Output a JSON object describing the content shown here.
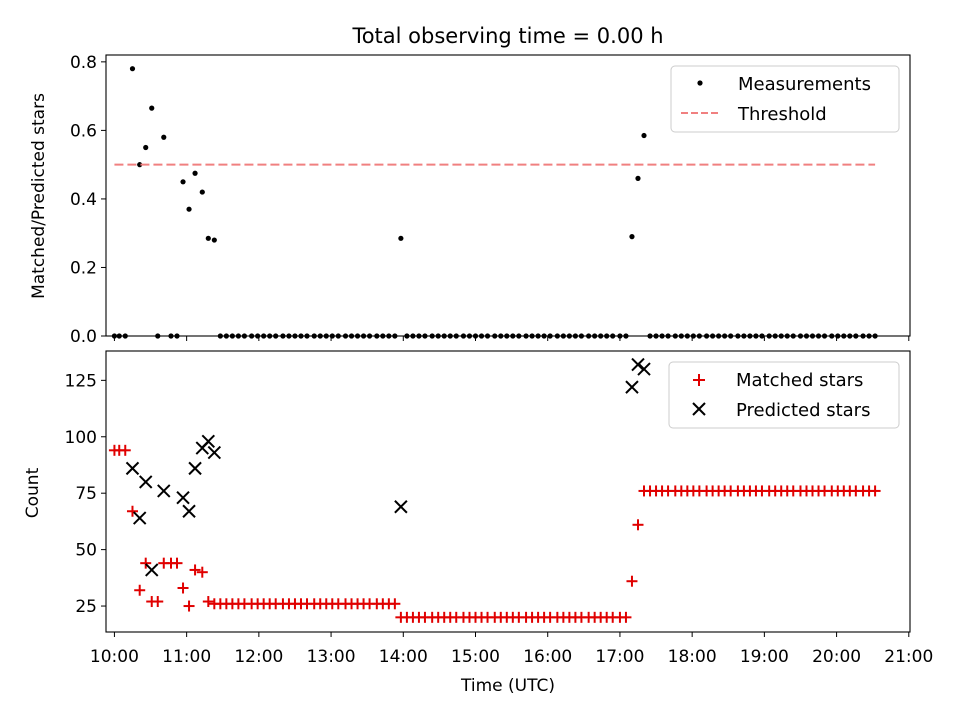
{
  "figure": {
    "title": "Total observing time = 0.00 h",
    "xlabel": "Time (UTC)",
    "xticks": [
      "10:00",
      "11:00",
      "12:00",
      "13:00",
      "14:00",
      "15:00",
      "16:00",
      "17:00",
      "18:00",
      "19:00",
      "20:00",
      "21:00"
    ]
  },
  "colors": {
    "measurement": "#000000",
    "threshold": "#f08080",
    "matched": "#e00000",
    "predicted": "#000000"
  },
  "chart_data": [
    {
      "type": "scatter",
      "panel": "top",
      "ylabel": "Matched/Predicted stars",
      "xlim": [
        "09:53",
        "21:01"
      ],
      "ylim": [
        0,
        0.82
      ],
      "yticks": [
        "0.0",
        "0.2",
        "0.4",
        "0.6",
        "0.8"
      ],
      "legend_placement": "top-right",
      "series": [
        {
          "name": "Measurements",
          "marker": "dot",
          "points": [
            [
              "10:00",
              0
            ],
            [
              "10:04",
              0
            ],
            [
              "10:09",
              0
            ],
            [
              "10:15",
              0.78
            ],
            [
              "10:21",
              0.5
            ],
            [
              "10:26",
              0.55
            ],
            [
              "10:31",
              0.665
            ],
            [
              "10:36",
              0
            ],
            [
              "10:41",
              0.58
            ],
            [
              "10:47",
              0
            ],
            [
              "10:52",
              0
            ],
            [
              "10:57",
              0.45
            ],
            [
              "11:02",
              0.37
            ],
            [
              "11:07",
              0.475
            ],
            [
              "11:13",
              0.42
            ],
            [
              "11:18",
              0.285
            ],
            [
              "11:23",
              0.28
            ],
            [
              "11:28",
              0
            ],
            [
              "11:33",
              0
            ],
            [
              "11:38",
              0
            ],
            [
              "11:43",
              0
            ],
            [
              "11:48",
              0
            ],
            [
              "11:54",
              0
            ],
            [
              "11:59",
              0
            ],
            [
              "12:04",
              0
            ],
            [
              "12:09",
              0
            ],
            [
              "12:14",
              0
            ],
            [
              "12:20",
              0
            ],
            [
              "12:25",
              0
            ],
            [
              "12:30",
              0
            ],
            [
              "12:35",
              0
            ],
            [
              "12:40",
              0
            ],
            [
              "12:46",
              0
            ],
            [
              "12:51",
              0
            ],
            [
              "12:56",
              0
            ],
            [
              "13:01",
              0
            ],
            [
              "13:06",
              0
            ],
            [
              "13:12",
              0
            ],
            [
              "13:17",
              0
            ],
            [
              "13:22",
              0
            ],
            [
              "13:27",
              0
            ],
            [
              "13:32",
              0
            ],
            [
              "13:38",
              0
            ],
            [
              "13:43",
              0
            ],
            [
              "13:48",
              0
            ],
            [
              "13:53",
              0
            ],
            [
              "13:58",
              0.285
            ],
            [
              "14:03",
              0
            ],
            [
              "14:08",
              0
            ],
            [
              "14:13",
              0
            ],
            [
              "14:18",
              0
            ],
            [
              "14:24",
              0
            ],
            [
              "14:29",
              0
            ],
            [
              "14:34",
              0
            ],
            [
              "14:39",
              0
            ],
            [
              "14:44",
              0
            ],
            [
              "14:50",
              0
            ],
            [
              "14:55",
              0
            ],
            [
              "15:00",
              0
            ],
            [
              "15:05",
              0
            ],
            [
              "15:10",
              0
            ],
            [
              "15:16",
              0
            ],
            [
              "15:21",
              0
            ],
            [
              "15:26",
              0
            ],
            [
              "15:31",
              0
            ],
            [
              "15:36",
              0
            ],
            [
              "15:42",
              0
            ],
            [
              "15:47",
              0
            ],
            [
              "15:52",
              0
            ],
            [
              "15:57",
              0
            ],
            [
              "16:02",
              0
            ],
            [
              "16:08",
              0
            ],
            [
              "16:13",
              0
            ],
            [
              "16:18",
              0
            ],
            [
              "16:23",
              0
            ],
            [
              "16:28",
              0
            ],
            [
              "16:34",
              0
            ],
            [
              "16:39",
              0
            ],
            [
              "16:44",
              0
            ],
            [
              "16:49",
              0
            ],
            [
              "16:54",
              0
            ],
            [
              "17:00",
              0
            ],
            [
              "17:05",
              0
            ],
            [
              "17:10",
              0.29
            ],
            [
              "17:15",
              0.46
            ],
            [
              "17:20",
              0.585
            ],
            [
              "17:25",
              0
            ],
            [
              "17:30",
              0
            ],
            [
              "17:35",
              0
            ],
            [
              "17:40",
              0
            ],
            [
              "17:46",
              0
            ],
            [
              "17:51",
              0
            ],
            [
              "17:56",
              0
            ],
            [
              "18:01",
              0
            ],
            [
              "18:06",
              0
            ],
            [
              "18:12",
              0
            ],
            [
              "18:17",
              0
            ],
            [
              "18:22",
              0
            ],
            [
              "18:27",
              0
            ],
            [
              "18:32",
              0
            ],
            [
              "18:38",
              0
            ],
            [
              "18:43",
              0
            ],
            [
              "18:48",
              0
            ],
            [
              "18:53",
              0
            ],
            [
              "18:58",
              0
            ],
            [
              "19:04",
              0
            ],
            [
              "19:09",
              0
            ],
            [
              "19:14",
              0
            ],
            [
              "19:19",
              0
            ],
            [
              "19:24",
              0
            ],
            [
              "19:30",
              0
            ],
            [
              "19:35",
              0
            ],
            [
              "19:40",
              0
            ],
            [
              "19:45",
              0
            ],
            [
              "19:50",
              0
            ],
            [
              "19:56",
              0
            ],
            [
              "20:01",
              0
            ],
            [
              "20:06",
              0
            ],
            [
              "20:11",
              0
            ],
            [
              "20:16",
              0
            ],
            [
              "20:22",
              0
            ],
            [
              "20:27",
              0
            ],
            [
              "20:32",
              0
            ]
          ]
        },
        {
          "name": "Threshold",
          "style": "dashed-line",
          "points": [
            [
              "10:00",
              0.5
            ],
            [
              "20:32",
              0.5
            ]
          ]
        }
      ]
    },
    {
      "type": "scatter",
      "panel": "bottom",
      "ylabel": "Count",
      "xlim": [
        "09:53",
        "21:01"
      ],
      "ylim": [
        13.5,
        138
      ],
      "yticks": [
        "25",
        "50",
        "75",
        "100",
        "125"
      ],
      "legend_placement": "top-right",
      "series": [
        {
          "name": "Matched stars",
          "marker": "plus",
          "points": [
            [
              "10:00",
              94
            ],
            [
              "10:04",
              94
            ],
            [
              "10:09",
              94
            ],
            [
              "10:15",
              67
            ],
            [
              "10:21",
              32
            ],
            [
              "10:26",
              44
            ],
            [
              "10:31",
              27
            ],
            [
              "10:36",
              27
            ],
            [
              "10:41",
              44
            ],
            [
              "10:47",
              44
            ],
            [
              "10:52",
              44
            ],
            [
              "10:57",
              33
            ],
            [
              "11:02",
              25
            ],
            [
              "11:07",
              41
            ],
            [
              "11:13",
              40
            ],
            [
              "11:18",
              27
            ],
            [
              "11:23",
              26
            ],
            [
              "11:28",
              26
            ],
            [
              "11:33",
              26
            ],
            [
              "11:38",
              26
            ],
            [
              "11:43",
              26
            ],
            [
              "11:48",
              26
            ],
            [
              "11:54",
              26
            ],
            [
              "11:59",
              26
            ],
            [
              "12:04",
              26
            ],
            [
              "12:09",
              26
            ],
            [
              "12:14",
              26
            ],
            [
              "12:20",
              26
            ],
            [
              "12:25",
              26
            ],
            [
              "12:30",
              26
            ],
            [
              "12:35",
              26
            ],
            [
              "12:40",
              26
            ],
            [
              "12:46",
              26
            ],
            [
              "12:51",
              26
            ],
            [
              "12:56",
              26
            ],
            [
              "13:01",
              26
            ],
            [
              "13:06",
              26
            ],
            [
              "13:12",
              26
            ],
            [
              "13:17",
              26
            ],
            [
              "13:22",
              26
            ],
            [
              "13:27",
              26
            ],
            [
              "13:32",
              26
            ],
            [
              "13:38",
              26
            ],
            [
              "13:43",
              26
            ],
            [
              "13:48",
              26
            ],
            [
              "13:53",
              26
            ],
            [
              "13:58",
              20
            ],
            [
              "14:03",
              20
            ],
            [
              "14:08",
              20
            ],
            [
              "14:13",
              20
            ],
            [
              "14:18",
              20
            ],
            [
              "14:24",
              20
            ],
            [
              "14:29",
              20
            ],
            [
              "14:34",
              20
            ],
            [
              "14:39",
              20
            ],
            [
              "14:44",
              20
            ],
            [
              "14:50",
              20
            ],
            [
              "14:55",
              20
            ],
            [
              "15:00",
              20
            ],
            [
              "15:05",
              20
            ],
            [
              "15:10",
              20
            ],
            [
              "15:16",
              20
            ],
            [
              "15:21",
              20
            ],
            [
              "15:26",
              20
            ],
            [
              "15:31",
              20
            ],
            [
              "15:36",
              20
            ],
            [
              "15:42",
              20
            ],
            [
              "15:47",
              20
            ],
            [
              "15:52",
              20
            ],
            [
              "15:57",
              20
            ],
            [
              "16:02",
              20
            ],
            [
              "16:08",
              20
            ],
            [
              "16:13",
              20
            ],
            [
              "16:18",
              20
            ],
            [
              "16:23",
              20
            ],
            [
              "16:28",
              20
            ],
            [
              "16:34",
              20
            ],
            [
              "16:39",
              20
            ],
            [
              "16:44",
              20
            ],
            [
              "16:49",
              20
            ],
            [
              "16:54",
              20
            ],
            [
              "17:00",
              20
            ],
            [
              "17:05",
              20
            ],
            [
              "17:10",
              36
            ],
            [
              "17:15",
              61
            ],
            [
              "17:20",
              76
            ],
            [
              "17:25",
              76
            ],
            [
              "17:30",
              76
            ],
            [
              "17:35",
              76
            ],
            [
              "17:40",
              76
            ],
            [
              "17:46",
              76
            ],
            [
              "17:51",
              76
            ],
            [
              "17:56",
              76
            ],
            [
              "18:01",
              76
            ],
            [
              "18:06",
              76
            ],
            [
              "18:12",
              76
            ],
            [
              "18:17",
              76
            ],
            [
              "18:22",
              76
            ],
            [
              "18:27",
              76
            ],
            [
              "18:32",
              76
            ],
            [
              "18:38",
              76
            ],
            [
              "18:43",
              76
            ],
            [
              "18:48",
              76
            ],
            [
              "18:53",
              76
            ],
            [
              "18:58",
              76
            ],
            [
              "19:04",
              76
            ],
            [
              "19:09",
              76
            ],
            [
              "19:14",
              76
            ],
            [
              "19:19",
              76
            ],
            [
              "19:24",
              76
            ],
            [
              "19:30",
              76
            ],
            [
              "19:35",
              76
            ],
            [
              "19:40",
              76
            ],
            [
              "19:45",
              76
            ],
            [
              "19:50",
              76
            ],
            [
              "19:56",
              76
            ],
            [
              "20:01",
              76
            ],
            [
              "20:06",
              76
            ],
            [
              "20:11",
              76
            ],
            [
              "20:16",
              76
            ],
            [
              "20:22",
              76
            ],
            [
              "20:27",
              76
            ],
            [
              "20:32",
              76
            ]
          ]
        },
        {
          "name": "Predicted stars",
          "marker": "x",
          "points": [
            [
              "10:15",
              86
            ],
            [
              "10:21",
              64
            ],
            [
              "10:26",
              80
            ],
            [
              "10:31",
              41
            ],
            [
              "10:41",
              76
            ],
            [
              "10:57",
              73
            ],
            [
              "11:02",
              67
            ],
            [
              "11:07",
              86
            ],
            [
              "11:13",
              95
            ],
            [
              "11:18",
              98
            ],
            [
              "11:23",
              93
            ],
            [
              "13:58",
              69
            ],
            [
              "17:10",
              122
            ],
            [
              "17:15",
              132
            ],
            [
              "17:20",
              130
            ]
          ]
        }
      ]
    }
  ]
}
